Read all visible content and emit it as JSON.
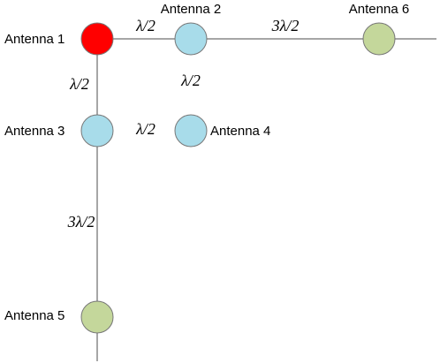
{
  "nodes": [
    {
      "label": "Antenna 1"
    },
    {
      "label": "Antenna 2"
    },
    {
      "label": "Antenna 3"
    },
    {
      "label": "Antenna 4"
    },
    {
      "label": "Antenna 5"
    },
    {
      "label": "Antenna 6"
    }
  ],
  "spacings": [
    {
      "label": "λ/2"
    },
    {
      "label": "3λ/2"
    },
    {
      "label": "λ/2"
    },
    {
      "label": "λ/2"
    },
    {
      "label": "λ/2"
    },
    {
      "label": "3λ/2"
    }
  ]
}
